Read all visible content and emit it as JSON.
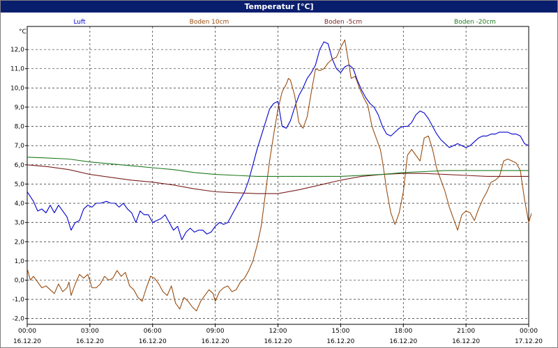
{
  "window": {
    "title": "Temperatur [°C]"
  },
  "chart_data": {
    "type": "line",
    "title": "Temperatur [°C]",
    "ylabel": "°C",
    "xlabel": "",
    "ylim": [
      -2.3,
      13.2
    ],
    "xlim": [
      0,
      24
    ],
    "grid": true,
    "legend_placement": "top",
    "y_ticks": [
      -2.0,
      -1.0,
      0.0,
      1.0,
      2.0,
      3.0,
      4.0,
      5.0,
      6.0,
      7.0,
      8.0,
      9.0,
      10.0,
      11.0,
      12.0
    ],
    "y_tick_labels": [
      "-2,0",
      "-1,0",
      "0,0",
      "1,0",
      "2,0",
      "3,0",
      "4,0",
      "5,0",
      "6,0",
      "7,0",
      "8,0",
      "9,0",
      "10,0",
      "11,0",
      "12,0"
    ],
    "x_ticks": [
      0,
      3,
      6,
      9,
      12,
      15,
      18,
      21,
      24
    ],
    "x_tick_times": [
      "00:00",
      "03:00",
      "06:00",
      "09:00",
      "12:00",
      "15:00",
      "18:00",
      "21:00",
      "00:00"
    ],
    "x_tick_dates": [
      "16.12.20",
      "16.12.20",
      "16.12.20",
      "16.12.20",
      "16.12.20",
      "16.12.20",
      "16.12.20",
      "16.12.20",
      "17.12.20"
    ],
    "series": [
      {
        "name": "Luft",
        "color": "#0000cc",
        "points": [
          [
            0,
            4.6
          ],
          [
            0.3,
            4.1
          ],
          [
            0.5,
            3.6
          ],
          [
            0.7,
            3.7
          ],
          [
            0.9,
            3.5
          ],
          [
            1.1,
            3.9
          ],
          [
            1.3,
            3.5
          ],
          [
            1.5,
            3.9
          ],
          [
            1.7,
            3.6
          ],
          [
            1.9,
            3.3
          ],
          [
            2.1,
            2.6
          ],
          [
            2.3,
            3.0
          ],
          [
            2.5,
            3.1
          ],
          [
            2.7,
            3.7
          ],
          [
            2.9,
            3.9
          ],
          [
            3.1,
            3.8
          ],
          [
            3.3,
            4.0
          ],
          [
            3.5,
            4.0
          ],
          [
            3.8,
            4.1
          ],
          [
            4.0,
            4.0
          ],
          [
            4.2,
            4.0
          ],
          [
            4.4,
            3.8
          ],
          [
            4.6,
            4.0
          ],
          [
            4.8,
            3.7
          ],
          [
            5.0,
            3.5
          ],
          [
            5.2,
            3.0
          ],
          [
            5.4,
            3.6
          ],
          [
            5.6,
            3.4
          ],
          [
            5.8,
            3.4
          ],
          [
            6.0,
            3.0
          ],
          [
            6.2,
            3.1
          ],
          [
            6.4,
            3.2
          ],
          [
            6.6,
            3.4
          ],
          [
            6.8,
            3.0
          ],
          [
            7.0,
            2.6
          ],
          [
            7.2,
            2.8
          ],
          [
            7.4,
            2.1
          ],
          [
            7.6,
            2.5
          ],
          [
            7.8,
            2.7
          ],
          [
            8.0,
            2.5
          ],
          [
            8.2,
            2.6
          ],
          [
            8.4,
            2.6
          ],
          [
            8.6,
            2.4
          ],
          [
            8.8,
            2.5
          ],
          [
            9.0,
            2.8
          ],
          [
            9.2,
            3.0
          ],
          [
            9.4,
            2.9
          ],
          [
            9.6,
            3.0
          ],
          [
            9.8,
            3.4
          ],
          [
            10.0,
            3.8
          ],
          [
            10.2,
            4.2
          ],
          [
            10.4,
            4.6
          ],
          [
            10.6,
            5.2
          ],
          [
            10.8,
            6.0
          ],
          [
            11.0,
            6.8
          ],
          [
            11.2,
            7.5
          ],
          [
            11.4,
            8.2
          ],
          [
            11.6,
            8.9
          ],
          [
            11.8,
            9.2
          ],
          [
            12.0,
            9.3
          ],
          [
            12.2,
            8.0
          ],
          [
            12.4,
            7.9
          ],
          [
            12.6,
            8.3
          ],
          [
            12.8,
            9.0
          ],
          [
            13.0,
            9.6
          ],
          [
            13.2,
            10.0
          ],
          [
            13.4,
            10.5
          ],
          [
            13.6,
            10.8
          ],
          [
            13.8,
            11.2
          ],
          [
            14.0,
            12.0
          ],
          [
            14.2,
            12.4
          ],
          [
            14.4,
            12.3
          ],
          [
            14.6,
            11.5
          ],
          [
            14.8,
            11.0
          ],
          [
            15.0,
            10.8
          ],
          [
            15.2,
            11.1
          ],
          [
            15.4,
            11.2
          ],
          [
            15.6,
            11.0
          ],
          [
            15.8,
            10.4
          ],
          [
            16.0,
            9.9
          ],
          [
            16.2,
            9.5
          ],
          [
            16.4,
            9.2
          ],
          [
            16.6,
            9.0
          ],
          [
            16.8,
            8.6
          ],
          [
            17.0,
            8.0
          ],
          [
            17.2,
            7.6
          ],
          [
            17.4,
            7.5
          ],
          [
            17.6,
            7.7
          ],
          [
            17.8,
            7.9
          ],
          [
            18.0,
            8.0
          ],
          [
            18.2,
            8.0
          ],
          [
            18.4,
            8.2
          ],
          [
            18.6,
            8.6
          ],
          [
            18.8,
            8.8
          ],
          [
            19.0,
            8.7
          ],
          [
            19.2,
            8.4
          ],
          [
            19.4,
            8.0
          ],
          [
            19.6,
            7.6
          ],
          [
            19.8,
            7.3
          ],
          [
            20.0,
            7.1
          ],
          [
            20.2,
            6.9
          ],
          [
            20.4,
            7.0
          ],
          [
            20.6,
            7.1
          ],
          [
            20.8,
            7.0
          ],
          [
            21.0,
            6.9
          ],
          [
            21.2,
            7.0
          ],
          [
            21.4,
            7.2
          ],
          [
            21.6,
            7.4
          ],
          [
            21.8,
            7.5
          ],
          [
            22.0,
            7.5
          ],
          [
            22.2,
            7.6
          ],
          [
            22.4,
            7.6
          ],
          [
            22.6,
            7.7
          ],
          [
            22.8,
            7.7
          ],
          [
            23.0,
            7.7
          ],
          [
            23.2,
            7.6
          ],
          [
            23.4,
            7.6
          ],
          [
            23.6,
            7.5
          ],
          [
            23.8,
            7.1
          ],
          [
            24.0,
            7.0
          ]
        ]
      },
      {
        "name": "Boden 10cm",
        "color": "#994c0f",
        "points": [
          [
            0,
            0.6
          ],
          [
            0.15,
            0.0
          ],
          [
            0.3,
            0.2
          ],
          [
            0.5,
            -0.1
          ],
          [
            0.7,
            -0.4
          ],
          [
            0.9,
            -0.3
          ],
          [
            1.1,
            -0.5
          ],
          [
            1.3,
            -0.7
          ],
          [
            1.5,
            -0.2
          ],
          [
            1.7,
            -0.6
          ],
          [
            1.9,
            -0.4
          ],
          [
            2.0,
            -0.1
          ],
          [
            2.1,
            -0.8
          ],
          [
            2.3,
            -0.2
          ],
          [
            2.5,
            0.3
          ],
          [
            2.7,
            0.1
          ],
          [
            2.9,
            0.3
          ],
          [
            3.1,
            -0.4
          ],
          [
            3.3,
            -0.4
          ],
          [
            3.5,
            -0.2
          ],
          [
            3.7,
            0.2
          ],
          [
            3.9,
            0.0
          ],
          [
            4.1,
            0.1
          ],
          [
            4.3,
            0.5
          ],
          [
            4.5,
            0.2
          ],
          [
            4.7,
            0.4
          ],
          [
            4.9,
            -0.3
          ],
          [
            5.1,
            -0.5
          ],
          [
            5.3,
            -0.9
          ],
          [
            5.5,
            -1.1
          ],
          [
            5.7,
            -0.4
          ],
          [
            5.9,
            0.2
          ],
          [
            6.1,
            0.1
          ],
          [
            6.3,
            -0.2
          ],
          [
            6.5,
            -0.6
          ],
          [
            6.7,
            -0.8
          ],
          [
            6.9,
            -0.3
          ],
          [
            7.1,
            -1.2
          ],
          [
            7.3,
            -1.5
          ],
          [
            7.5,
            -0.9
          ],
          [
            7.7,
            -1.1
          ],
          [
            7.9,
            -1.4
          ],
          [
            8.1,
            -1.6
          ],
          [
            8.3,
            -1.1
          ],
          [
            8.5,
            -0.8
          ],
          [
            8.7,
            -0.5
          ],
          [
            8.9,
            -0.7
          ],
          [
            9.0,
            -1.1
          ],
          [
            9.2,
            -0.6
          ],
          [
            9.4,
            -0.4
          ],
          [
            9.6,
            -0.3
          ],
          [
            9.8,
            -0.6
          ],
          [
            10.0,
            -0.5
          ],
          [
            10.2,
            -0.1
          ],
          [
            10.4,
            0.1
          ],
          [
            10.6,
            0.5
          ],
          [
            10.8,
            1.0
          ],
          [
            11.0,
            1.8
          ],
          [
            11.2,
            2.8
          ],
          [
            11.4,
            4.5
          ],
          [
            11.6,
            6.2
          ],
          [
            11.8,
            7.6
          ],
          [
            12.0,
            8.9
          ],
          [
            12.2,
            9.8
          ],
          [
            12.4,
            10.2
          ],
          [
            12.5,
            10.5
          ],
          [
            12.6,
            10.4
          ],
          [
            12.8,
            9.6
          ],
          [
            13.0,
            8.2
          ],
          [
            13.2,
            7.9
          ],
          [
            13.4,
            8.5
          ],
          [
            13.6,
            9.8
          ],
          [
            13.8,
            11.0
          ],
          [
            14.0,
            10.9
          ],
          [
            14.2,
            11.0
          ],
          [
            14.4,
            11.3
          ],
          [
            14.6,
            11.5
          ],
          [
            14.8,
            11.6
          ],
          [
            15.0,
            12.1
          ],
          [
            15.2,
            12.5
          ],
          [
            15.4,
            11.2
          ],
          [
            15.5,
            10.5
          ],
          [
            15.7,
            10.6
          ],
          [
            15.9,
            10.0
          ],
          [
            16.1,
            9.5
          ],
          [
            16.3,
            9.1
          ],
          [
            16.5,
            8.0
          ],
          [
            16.7,
            7.4
          ],
          [
            16.9,
            6.8
          ],
          [
            17.0,
            6.2
          ],
          [
            17.2,
            4.7
          ],
          [
            17.4,
            3.5
          ],
          [
            17.6,
            2.9
          ],
          [
            17.8,
            3.5
          ],
          [
            18.0,
            4.6
          ],
          [
            18.2,
            6.5
          ],
          [
            18.4,
            6.8
          ],
          [
            18.6,
            6.5
          ],
          [
            18.8,
            6.2
          ],
          [
            19.0,
            7.4
          ],
          [
            19.2,
            7.5
          ],
          [
            19.4,
            6.8
          ],
          [
            19.6,
            5.8
          ],
          [
            19.8,
            5.2
          ],
          [
            20.0,
            4.6
          ],
          [
            20.2,
            3.8
          ],
          [
            20.4,
            3.2
          ],
          [
            20.6,
            2.6
          ],
          [
            20.8,
            3.4
          ],
          [
            21.0,
            3.6
          ],
          [
            21.2,
            3.5
          ],
          [
            21.4,
            3.1
          ],
          [
            21.6,
            3.7
          ],
          [
            21.8,
            4.2
          ],
          [
            22.0,
            4.6
          ],
          [
            22.2,
            5.1
          ],
          [
            22.4,
            5.2
          ],
          [
            22.6,
            5.4
          ],
          [
            22.8,
            6.2
          ],
          [
            23.0,
            6.3
          ],
          [
            23.2,
            6.2
          ],
          [
            23.4,
            6.1
          ],
          [
            23.6,
            5.7
          ],
          [
            23.8,
            4.2
          ],
          [
            24.0,
            3.0
          ],
          [
            24.2,
            3.7
          ]
        ]
      },
      {
        "name": "Boden -5cm",
        "color": "#7a1e1e",
        "points": [
          [
            0,
            6.0
          ],
          [
            1.0,
            5.9
          ],
          [
            2.0,
            5.75
          ],
          [
            3.0,
            5.5
          ],
          [
            4.0,
            5.35
          ],
          [
            5.0,
            5.2
          ],
          [
            6.0,
            5.1
          ],
          [
            7.0,
            4.95
          ],
          [
            8.0,
            4.75
          ],
          [
            9.0,
            4.6
          ],
          [
            10.0,
            4.55
          ],
          [
            11.0,
            4.5
          ],
          [
            12.0,
            4.5
          ],
          [
            13.0,
            4.7
          ],
          [
            14.0,
            4.95
          ],
          [
            15.0,
            5.2
          ],
          [
            16.0,
            5.4
          ],
          [
            17.0,
            5.5
          ],
          [
            18.0,
            5.55
          ],
          [
            19.0,
            5.55
          ],
          [
            20.0,
            5.5
          ],
          [
            21.0,
            5.45
          ],
          [
            22.0,
            5.4
          ],
          [
            23.0,
            5.4
          ],
          [
            24.0,
            5.4
          ]
        ]
      },
      {
        "name": "Boden -20cm",
        "color": "#1e7a1e",
        "points": [
          [
            0,
            6.4
          ],
          [
            1.0,
            6.35
          ],
          [
            2.0,
            6.3
          ],
          [
            3.0,
            6.15
          ],
          [
            4.0,
            6.05
          ],
          [
            5.0,
            5.95
          ],
          [
            6.0,
            5.85
          ],
          [
            7.0,
            5.75
          ],
          [
            8.0,
            5.6
          ],
          [
            9.0,
            5.5
          ],
          [
            10.0,
            5.45
          ],
          [
            11.0,
            5.4
          ],
          [
            12.0,
            5.4
          ],
          [
            13.0,
            5.4
          ],
          [
            14.0,
            5.4
          ],
          [
            15.0,
            5.4
          ],
          [
            16.0,
            5.45
          ],
          [
            17.0,
            5.5
          ],
          [
            18.0,
            5.6
          ],
          [
            19.0,
            5.65
          ],
          [
            20.0,
            5.7
          ],
          [
            21.0,
            5.7
          ],
          [
            22.0,
            5.7
          ],
          [
            23.0,
            5.7
          ],
          [
            24.0,
            5.7
          ]
        ]
      }
    ]
  }
}
